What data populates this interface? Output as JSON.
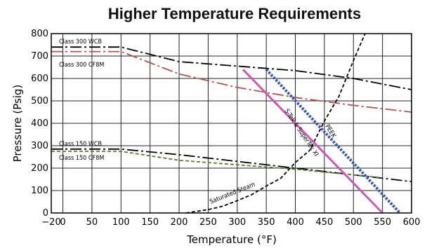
{
  "chart_data": {
    "type": "line",
    "title": "Higher Temperature Requirements",
    "xlabel": "Temperature (°F)",
    "ylabel": "Pressure (Psig)",
    "xlim": [
      -20,
      600
    ],
    "ylim": [
      0,
      800
    ],
    "xticks": [
      -20,
      0,
      50,
      100,
      150,
      200,
      250,
      300,
      350,
      400,
      450,
      500,
      550,
      600
    ],
    "yticks": [
      0,
      100,
      200,
      300,
      400,
      500,
      600,
      700,
      800
    ],
    "grid": true,
    "legend": "none",
    "series": [
      {
        "key": "c300wcb",
        "label": "Class 300 WCB",
        "style": "dashdot",
        "color": "#000000",
        "points": [
          [
            -20,
            740
          ],
          [
            100,
            740
          ],
          [
            200,
            675
          ],
          [
            300,
            655
          ],
          [
            400,
            635
          ],
          [
            500,
            600
          ],
          [
            600,
            550
          ]
        ]
      },
      {
        "key": "c300cf8m",
        "label": "Class 300 CF8M",
        "style": "dashdot",
        "color": "#b5524a",
        "points": [
          [
            -20,
            720
          ],
          [
            100,
            720
          ],
          [
            200,
            620
          ],
          [
            300,
            560
          ],
          [
            400,
            515
          ],
          [
            500,
            480
          ],
          [
            600,
            450
          ]
        ]
      },
      {
        "key": "c150wcb",
        "label": "Class 150 WCB",
        "style": "dashdot",
        "color": "#000000",
        "points": [
          [
            -20,
            285
          ],
          [
            100,
            285
          ],
          [
            200,
            260
          ],
          [
            300,
            230
          ],
          [
            400,
            200
          ],
          [
            500,
            170
          ],
          [
            600,
            140
          ]
        ]
      },
      {
        "key": "c150cf8m",
        "label": "Class 150 CF8M",
        "style": "dashed",
        "color": "#5a7d2a",
        "points": [
          [
            -20,
            275
          ],
          [
            100,
            275
          ],
          [
            200,
            235
          ],
          [
            300,
            215
          ],
          [
            400,
            195
          ],
          [
            500,
            170
          ],
          [
            550,
            157
          ]
        ]
      },
      {
        "key": "steam",
        "label": "Saturated Steam",
        "style": "dashed",
        "color": "#000000",
        "points": [
          [
            212,
            0
          ],
          [
            250,
            15
          ],
          [
            275,
            30
          ],
          [
            300,
            55
          ],
          [
            325,
            82
          ],
          [
            350,
            120
          ],
          [
            375,
            155
          ],
          [
            400,
            225
          ],
          [
            425,
            280
          ],
          [
            450,
            410
          ],
          [
            475,
            520
          ],
          [
            500,
            680
          ],
          [
            520,
            800
          ]
        ]
      },
      {
        "key": "stek",
        "label": "S-Tek & SuperTek XI",
        "style": "solid",
        "color": "#c85bb5",
        "points": [
          [
            310,
            640
          ],
          [
            550,
            0
          ]
        ]
      },
      {
        "key": "peek",
        "label": "PEEK",
        "style": "dotted",
        "color": "#3556b0",
        "points": [
          [
            350,
            640
          ],
          [
            580,
            0
          ]
        ]
      }
    ]
  }
}
